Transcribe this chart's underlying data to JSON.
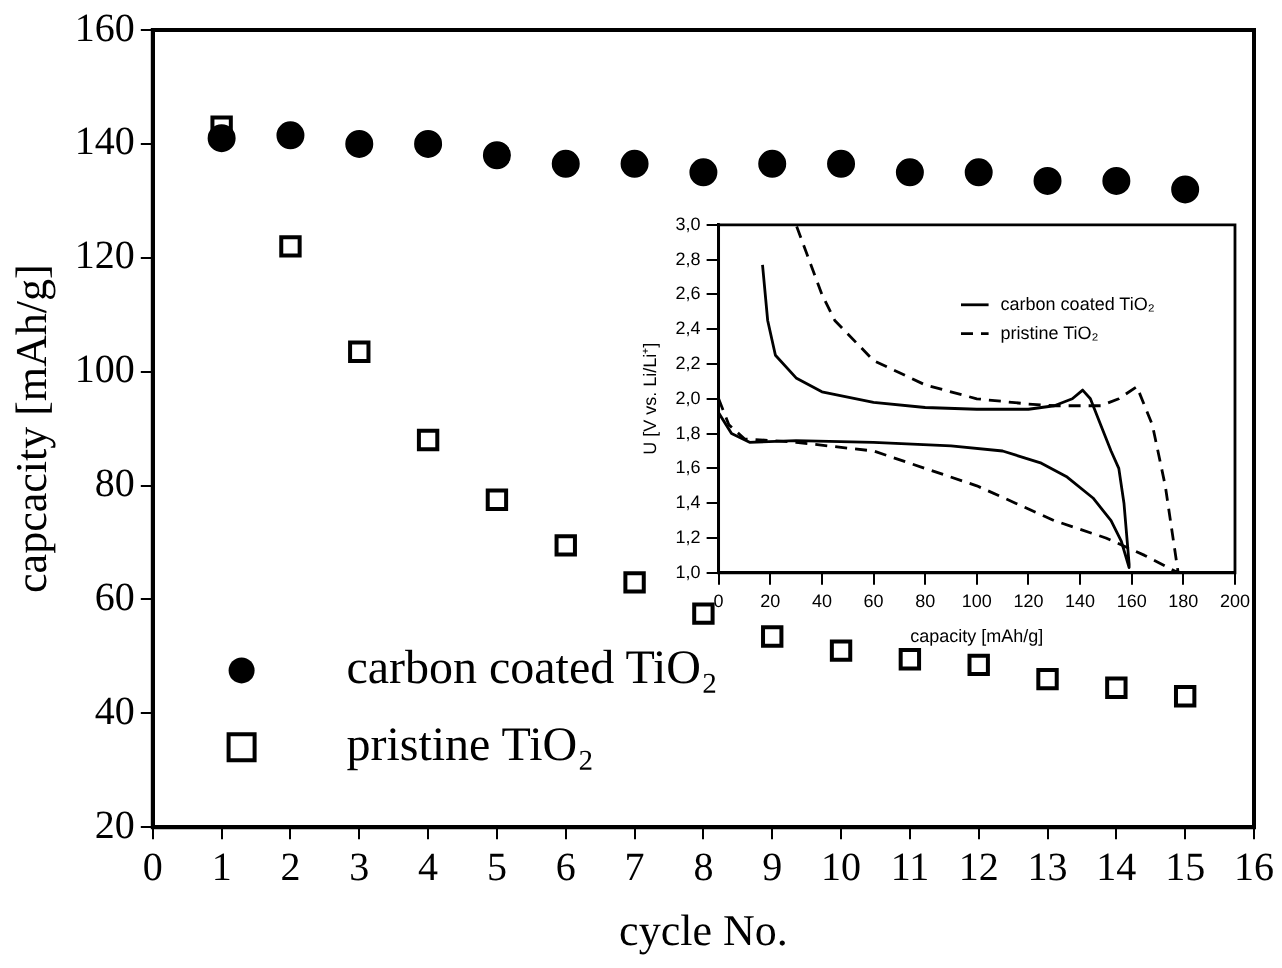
{
  "chart_data": [
    {
      "type": "scatter",
      "xlabel": "cycle No.",
      "ylabel": "capcacity [mAh/g]",
      "x": [
        1,
        2,
        3,
        4,
        5,
        6,
        7,
        8,
        9,
        10,
        11,
        12,
        13,
        14,
        15
      ],
      "series": [
        {
          "name": "carbon coated TiO₂",
          "color": "#000000",
          "marker": "circle",
          "values": [
            141,
            141.5,
            140,
            140,
            138,
            136.5,
            136.5,
            135,
            136.5,
            136.5,
            135,
            135,
            133.5,
            133.5,
            132
          ]
        },
        {
          "name": "pristine TiO₂",
          "color": "#000000",
          "marker": "square",
          "values": [
            143,
            122,
            103.5,
            88,
            77.5,
            69.5,
            63,
            57.5,
            53.5,
            51,
            49.5,
            48.5,
            46,
            44.5,
            43
          ]
        }
      ],
      "xlim": [
        0,
        16
      ],
      "xticks": [
        0,
        1,
        2,
        3,
        4,
        5,
        6,
        7,
        8,
        9,
        10,
        11,
        12,
        13,
        14,
        15,
        16
      ],
      "ylim": [
        20,
        160
      ],
      "yticks": [
        20,
        40,
        60,
        80,
        100,
        120,
        140,
        160
      ],
      "grid": false,
      "legend": "bottom left"
    },
    {
      "type": "line",
      "xlabel": "capacity [mAh/g]",
      "ylabel": "U [V vs. Li/Li⁺]",
      "series": [
        {
          "name": "carbon coated TiO₂",
          "color": "#000000",
          "line_style": "solid",
          "marker": "none",
          "x": [
            0,
            5,
            12,
            30,
            60,
            90,
            110,
            125,
            135,
            145,
            152,
            156,
            159,
            159,
            157,
            155,
            152,
            148,
            144,
            141,
            137,
            130,
            120,
            100,
            80,
            60,
            40,
            30,
            22,
            19,
            17
          ],
          "values": [
            1.92,
            1.8,
            1.75,
            1.76,
            1.75,
            1.73,
            1.7,
            1.63,
            1.55,
            1.43,
            1.3,
            1.18,
            1.03,
            1.05,
            1.4,
            1.6,
            1.7,
            1.85,
            2.0,
            2.05,
            2.0,
            1.96,
            1.94,
            1.94,
            1.95,
            1.98,
            2.04,
            2.12,
            2.25,
            2.45,
            2.77
          ]
        },
        {
          "name": "pristine TiO₂",
          "color": "#000000",
          "line_style": "dashed",
          "marker": "none",
          "x": [
            0,
            4,
            10,
            30,
            60,
            80,
            100,
            115,
            130,
            140,
            150,
            165,
            178,
            178,
            173,
            168,
            162,
            155,
            148,
            130,
            120,
            100,
            80,
            60,
            45,
            40,
            35,
            30
          ],
          "values": [
            2.0,
            1.85,
            1.77,
            1.75,
            1.7,
            1.6,
            1.5,
            1.4,
            1.3,
            1.25,
            1.2,
            1.1,
            1.0,
            1.0,
            1.5,
            1.85,
            2.07,
            2.0,
            1.96,
            1.96,
            1.97,
            2.0,
            2.08,
            2.22,
            2.45,
            2.6,
            2.8,
            3.0
          ]
        }
      ],
      "xlim": [
        0,
        200
      ],
      "xticks": [
        0,
        20,
        40,
        60,
        80,
        100,
        120,
        140,
        160,
        180,
        200
      ],
      "ylim": [
        1.0,
        3.0
      ],
      "yticks": [
        {
          "value": 1.0,
          "label": "1,0"
        },
        {
          "value": 1.2,
          "label": "1,2"
        },
        {
          "value": 1.4,
          "label": "1,4"
        },
        {
          "value": 1.6,
          "label": "1,6"
        },
        {
          "value": 1.8,
          "label": "1,8"
        },
        {
          "value": 2.0,
          "label": "2,0"
        },
        {
          "value": 2.2,
          "label": "2,2"
        },
        {
          "value": 2.4,
          "label": "2,4"
        },
        {
          "value": 2.6,
          "label": "2,6"
        },
        {
          "value": 2.8,
          "label": "2,8"
        },
        {
          "value": 3.0,
          "label": "3,0"
        }
      ],
      "grid": false,
      "legend": "top right"
    }
  ]
}
